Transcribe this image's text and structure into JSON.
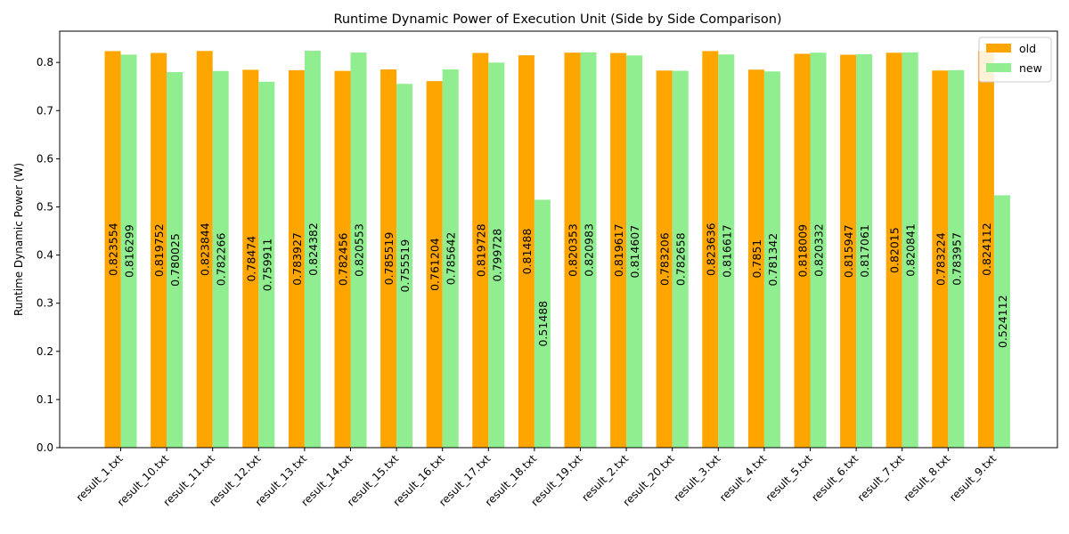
{
  "chart_data": {
    "type": "bar",
    "title": "Runtime Dynamic Power of Execution Unit (Side by Side Comparison)",
    "xlabel": "",
    "ylabel": "Runtime Dynamic Power (W)",
    "ylim": [
      0,
      0.865
    ],
    "yticks": [
      "0.0",
      "0.1",
      "0.2",
      "0.3",
      "0.4",
      "0.5",
      "0.6",
      "0.7",
      "0.8"
    ],
    "categories": [
      "result_1.txt",
      "result_10.txt",
      "result_11.txt",
      "result_12.txt",
      "result_13.txt",
      "result_14.txt",
      "result_15.txt",
      "result_16.txt",
      "result_17.txt",
      "result_18.txt",
      "result_19.txt",
      "result_2.txt",
      "result_20.txt",
      "result_3.txt",
      "result_4.txt",
      "result_5.txt",
      "result_6.txt",
      "result_7.txt",
      "result_8.txt",
      "result_9.txt"
    ],
    "series": [
      {
        "name": "old",
        "color": "#ffa500",
        "values": [
          0.823554,
          0.819752,
          0.823844,
          0.78474,
          0.783927,
          0.782456,
          0.785519,
          0.761204,
          0.819728,
          0.81488,
          0.820353,
          0.819617,
          0.783206,
          0.823636,
          0.7851,
          0.818009,
          0.815947,
          0.82015,
          0.783224,
          0.824112
        ],
        "labels": [
          "0.823554",
          "0.819752",
          "0.823844",
          "0.78474",
          "0.783927",
          "0.782456",
          "0.785519",
          "0.761204",
          "0.819728",
          "0.81488",
          "0.820353",
          "0.819617",
          "0.783206",
          "0.823636",
          "0.7851",
          "0.818009",
          "0.815947",
          "0.82015",
          "0.783224",
          "0.824112"
        ]
      },
      {
        "name": "new",
        "color": "#90ee90",
        "values": [
          0.816299,
          0.780025,
          0.782266,
          0.759911,
          0.824382,
          0.820553,
          0.755519,
          0.785642,
          0.799728,
          0.51488,
          0.820983,
          0.814607,
          0.782658,
          0.816617,
          0.781342,
          0.820332,
          0.817061,
          0.820841,
          0.783957,
          0.524112
        ],
        "labels": [
          "0.816299",
          "0.780025",
          "0.782266",
          "0.759911",
          "0.824382",
          "0.820553",
          "0.755519",
          "0.785642",
          "0.799728",
          "0.51488",
          "0.820983",
          "0.814607",
          "0.782658",
          "0.816617",
          "0.781342",
          "0.820332",
          "0.817061",
          "0.820841",
          "0.783957",
          "0.524112"
        ]
      }
    ],
    "legend": {
      "position": "top-right",
      "entries": [
        "old",
        "new"
      ]
    },
    "grid": false
  }
}
